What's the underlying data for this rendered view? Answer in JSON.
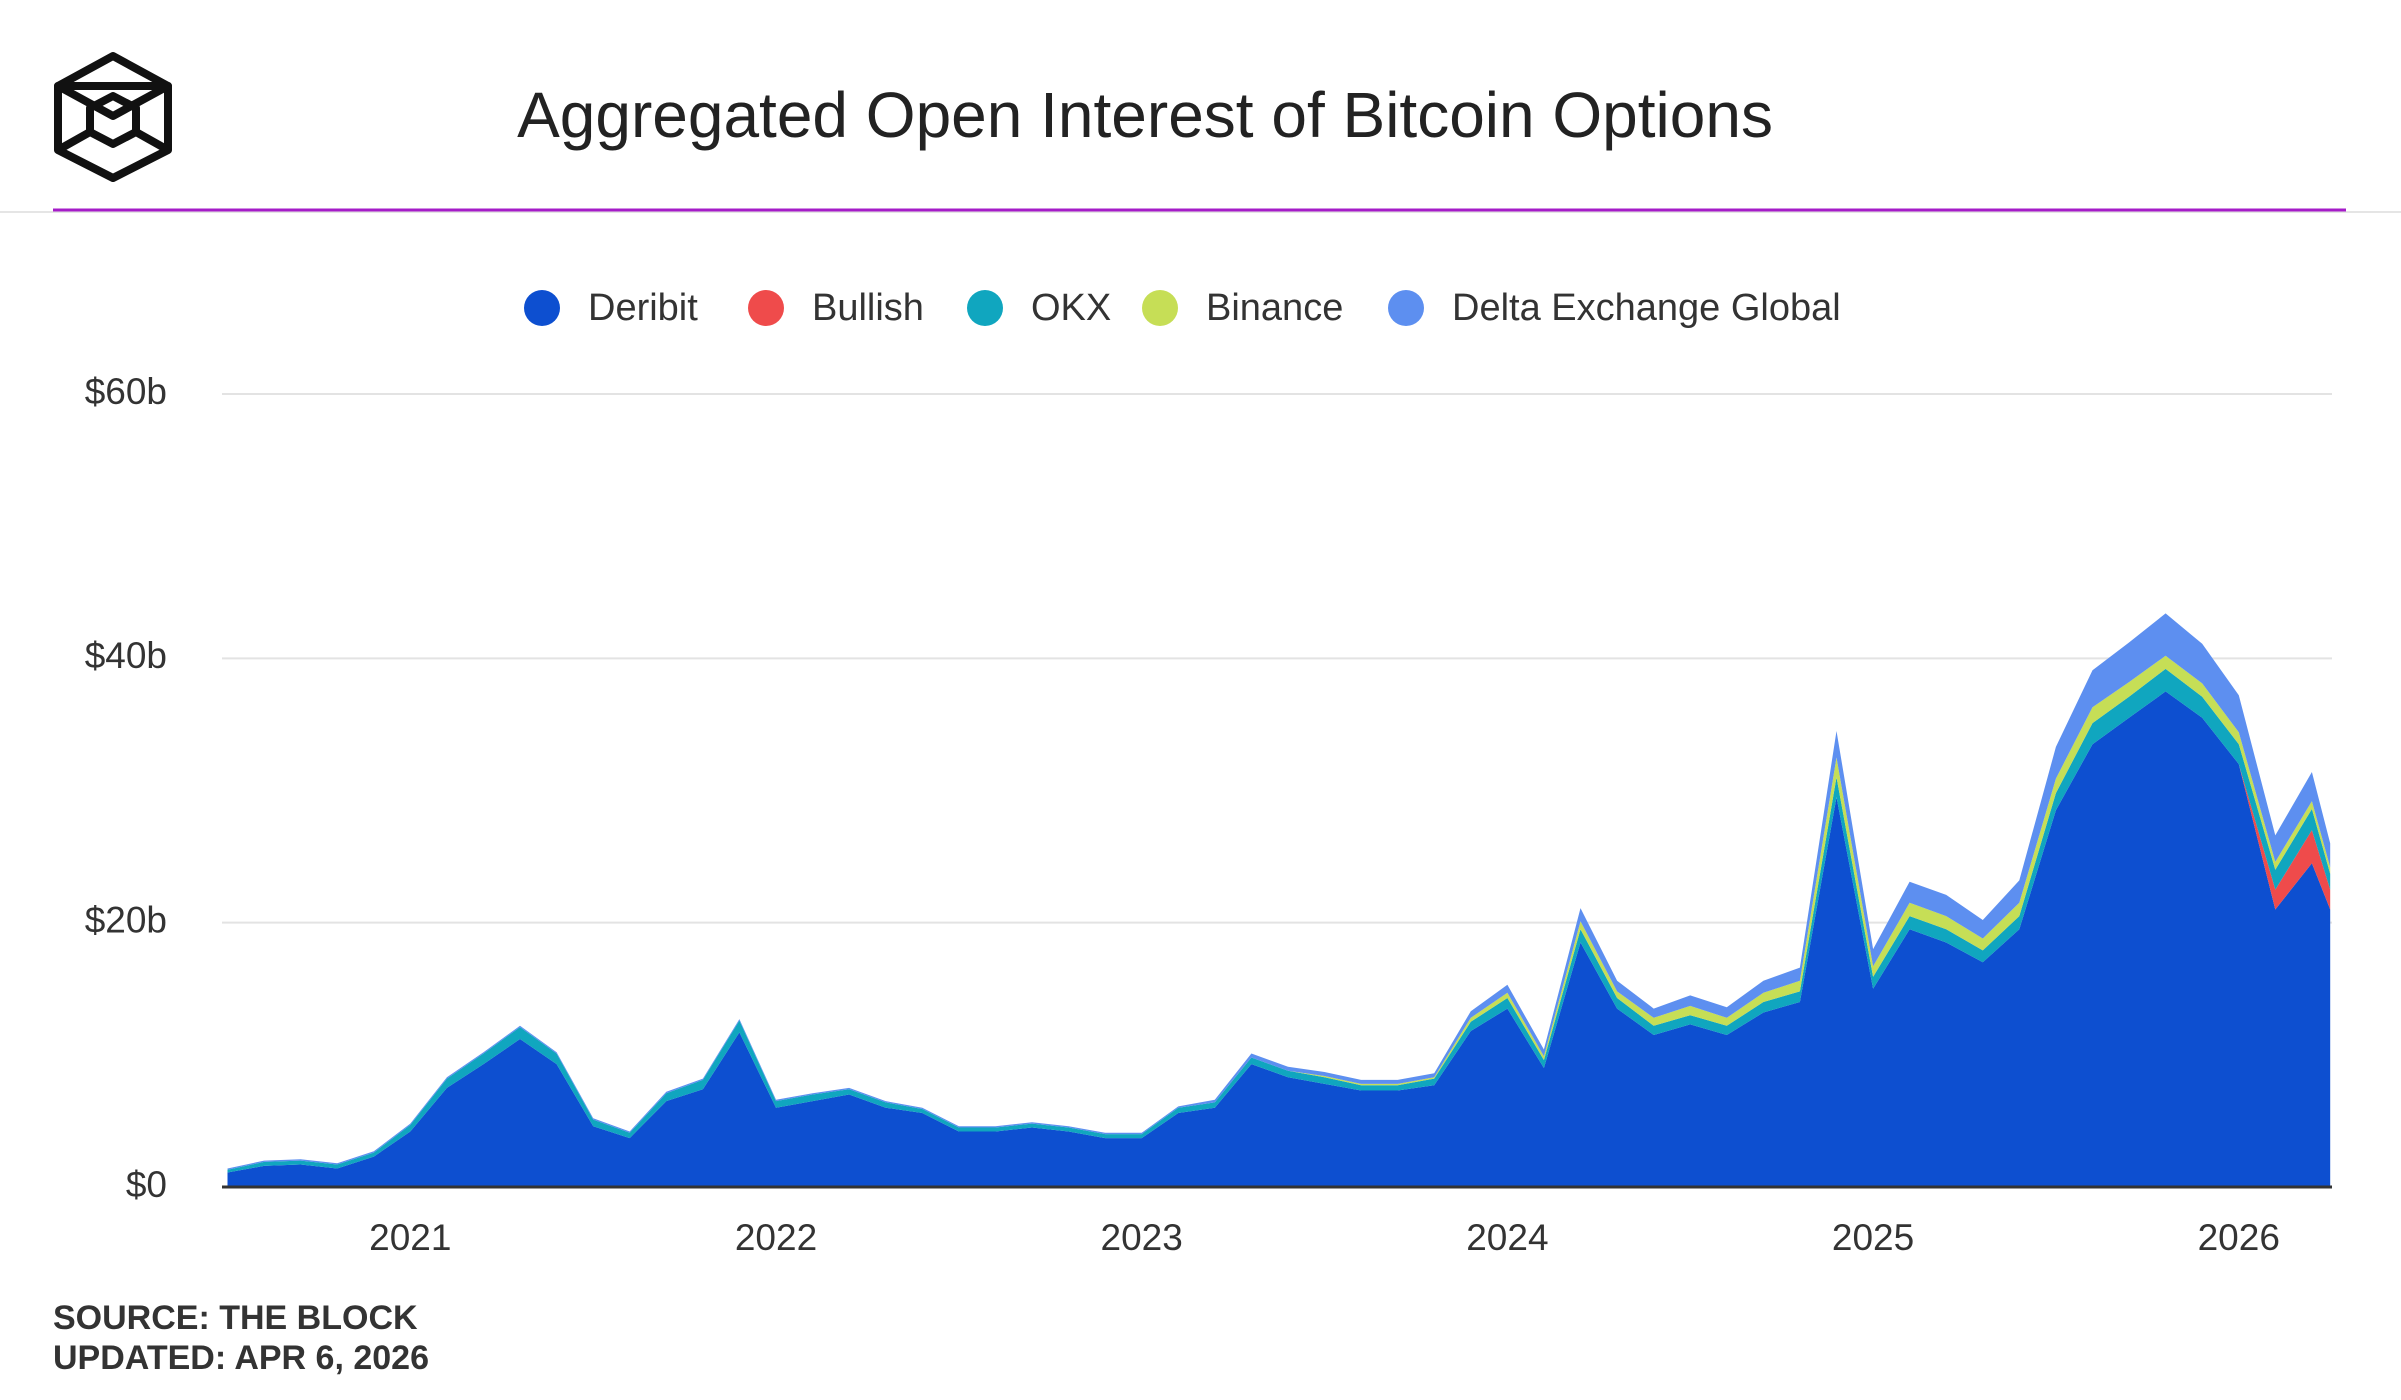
{
  "chart_data": {
    "type": "stacked-area",
    "title": "Aggregated Open Interest of Bitcoin Options",
    "source": "SOURCE: THE BLOCK",
    "updated": "UPDATED: APR 6, 2026",
    "x": [
      2020.5,
      2020.6,
      2020.7,
      2020.8,
      2020.9,
      2021.0,
      2021.1,
      2021.2,
      2021.3,
      2021.4,
      2021.5,
      2021.6,
      2021.7,
      2021.8,
      2021.9,
      2022.0,
      2022.1,
      2022.2,
      2022.3,
      2022.4,
      2022.5,
      2022.6,
      2022.7,
      2022.8,
      2022.9,
      2023.0,
      2023.1,
      2023.2,
      2023.3,
      2023.4,
      2023.5,
      2023.6,
      2023.7,
      2023.8,
      2023.9,
      2024.0,
      2024.1,
      2024.2,
      2024.3,
      2024.4,
      2024.5,
      2024.6,
      2024.7,
      2024.8,
      2024.9,
      2025.0,
      2025.1,
      2025.2,
      2025.3,
      2025.4,
      2025.5,
      2025.6,
      2025.7,
      2025.8,
      2025.9,
      2026.0,
      2026.1,
      2026.2,
      2026.25
    ],
    "series": [
      {
        "name": "Deribit",
        "color": "#0d4fd0",
        "values": [
          1.1,
          1.6,
          1.7,
          1.4,
          2.3,
          4.2,
          7.5,
          9.3,
          11.2,
          9.3,
          4.6,
          3.7,
          6.5,
          7.4,
          11.7,
          6.0,
          6.5,
          7.0,
          6.0,
          5.6,
          4.2,
          4.2,
          4.5,
          4.2,
          3.7,
          3.7,
          5.6,
          6.0,
          9.3,
          8.3,
          7.8,
          7.3,
          7.3,
          7.7,
          11.8,
          13.5,
          9.0,
          18.5,
          13.5,
          11.5,
          12.3,
          11.5,
          13.2,
          14.0,
          29.5,
          15.0,
          19.5,
          18.5,
          17.0,
          19.5,
          28.5,
          33.5,
          35.5,
          37.5,
          35.5,
          32.0,
          21.0,
          24.5,
          21.0
        ]
      },
      {
        "name": "Bullish",
        "color": "#ef4b4b",
        "values": [
          0,
          0,
          0,
          0,
          0,
          0,
          0,
          0,
          0,
          0,
          0,
          0,
          0,
          0,
          0,
          0,
          0,
          0,
          0,
          0,
          0,
          0,
          0,
          0,
          0,
          0,
          0,
          0,
          0,
          0,
          0,
          0,
          0,
          0,
          0,
          0,
          0,
          0,
          0,
          0,
          0,
          0,
          0,
          0,
          0,
          0,
          0,
          0,
          0,
          0,
          0,
          0,
          0,
          0,
          0,
          0,
          1.5,
          2.5,
          1.5
        ]
      },
      {
        "name": "OKX",
        "color": "#10a6bf",
        "values": [
          0.2,
          0.3,
          0.3,
          0.3,
          0.3,
          0.5,
          0.7,
          0.8,
          0.9,
          0.8,
          0.5,
          0.4,
          0.6,
          0.7,
          0.9,
          0.5,
          0.5,
          0.4,
          0.4,
          0.3,
          0.3,
          0.3,
          0.3,
          0.3,
          0.3,
          0.3,
          0.4,
          0.4,
          0.5,
          0.5,
          0.5,
          0.4,
          0.4,
          0.5,
          0.7,
          0.8,
          0.6,
          1.0,
          0.8,
          0.7,
          0.7,
          0.7,
          0.8,
          0.8,
          1.5,
          0.9,
          1.0,
          1.0,
          0.9,
          1.0,
          1.3,
          1.6,
          1.6,
          1.7,
          1.6,
          1.5,
          1.5,
          1.6,
          1.2
        ]
      },
      {
        "name": "Binance",
        "color": "#c6de56",
        "values": [
          0,
          0,
          0,
          0,
          0,
          0,
          0,
          0,
          0,
          0,
          0,
          0,
          0,
          0,
          0,
          0,
          0,
          0,
          0,
          0,
          0,
          0,
          0,
          0,
          0,
          0,
          0,
          0,
          0,
          0,
          0.1,
          0.1,
          0.1,
          0.1,
          0.3,
          0.4,
          0.3,
          0.6,
          0.5,
          0.6,
          0.7,
          0.6,
          0.7,
          0.8,
          1.5,
          0.8,
          1.0,
          1.0,
          0.9,
          1.0,
          1.1,
          1.2,
          1.1,
          1.0,
          1.0,
          0.9,
          0.6,
          0.6,
          0.5
        ]
      },
      {
        "name": "Delta Exchange Global",
        "color": "#5d8ff0",
        "values": [
          0.1,
          0.1,
          0.1,
          0.1,
          0.1,
          0.1,
          0.1,
          0.1,
          0.1,
          0.1,
          0.1,
          0.1,
          0.1,
          0.1,
          0.1,
          0.1,
          0.1,
          0.1,
          0.1,
          0.1,
          0.1,
          0.1,
          0.1,
          0.1,
          0.1,
          0.1,
          0.1,
          0.2,
          0.3,
          0.3,
          0.3,
          0.3,
          0.3,
          0.3,
          0.5,
          0.6,
          0.5,
          1.0,
          0.8,
          0.7,
          0.8,
          0.8,
          0.9,
          1.0,
          2.0,
          1.3,
          1.6,
          1.6,
          1.4,
          1.7,
          2.4,
          2.8,
          3.0,
          3.2,
          3.0,
          2.8,
          2.0,
          2.2,
          1.8
        ]
      }
    ],
    "xlim": [
      2020.485,
      2026.255
    ],
    "xticks": [
      2021,
      2022,
      2023,
      2024,
      2025,
      2026
    ],
    "ylim": [
      0,
      60
    ],
    "yticks": [
      {
        "value": 0,
        "label": "$0"
      },
      {
        "value": 20,
        "label": "$20b"
      },
      {
        "value": 40,
        "label": "$40b"
      },
      {
        "value": 60,
        "label": "$60b"
      }
    ],
    "grid": true
  }
}
